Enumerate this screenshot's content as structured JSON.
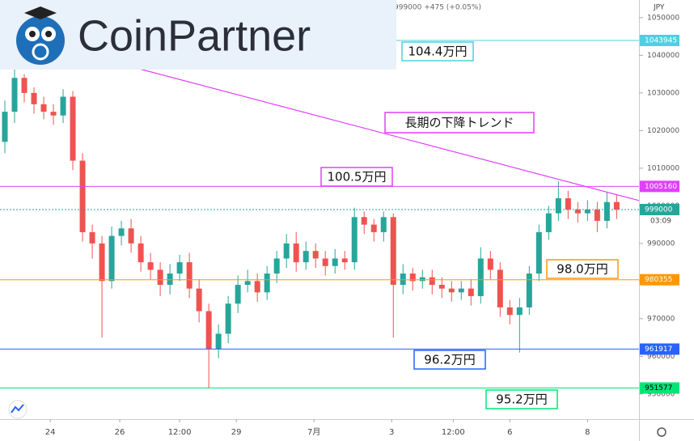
{
  "chart_data": {
    "type": "candlestick",
    "header": "値999000 +475 (+0.05%)",
    "currency": "JPY",
    "countdown": "03:09",
    "logo": "CoinPartner",
    "x": [
      0,
      1,
      2,
      3,
      4,
      5,
      6,
      7,
      8,
      9,
      10,
      11,
      12,
      13,
      14,
      15,
      16,
      17,
      18,
      19,
      20,
      21,
      22,
      23,
      24,
      25,
      26,
      27,
      28,
      29,
      30,
      31,
      32,
      33,
      34,
      35,
      36,
      37,
      38,
      39,
      40,
      41,
      42,
      43,
      44,
      45,
      46,
      47,
      48,
      49,
      50,
      51,
      52,
      53,
      54,
      55,
      56,
      57,
      58,
      59,
      60,
      61,
      62,
      63
    ],
    "open": [
      1017000,
      1025000,
      1034000,
      1030000,
      1027000,
      1025000,
      1024000,
      1029000,
      1012000,
      993000,
      990000,
      980000,
      992000,
      994000,
      990000,
      985000,
      983000,
      979000,
      982000,
      985000,
      978000,
      972000,
      962000,
      966000,
      974000,
      979000,
      980000,
      977000,
      982000,
      986000,
      990000,
      985000,
      988000,
      986000,
      984000,
      986000,
      985000,
      997000,
      995000,
      993000,
      997000,
      979000,
      982000,
      980000,
      981000,
      979000,
      978000,
      977000,
      978000,
      976000,
      986000,
      983000,
      973000,
      971000,
      973000,
      982000,
      993000,
      998000,
      1002000,
      999000,
      998000,
      999000,
      996000,
      1001000
    ],
    "high": [
      1028000,
      1036500,
      1035000,
      1031500,
      1029000,
      1027000,
      1031000,
      1030500,
      1014000,
      995000,
      992000,
      994500,
      996000,
      996500,
      992000,
      987500,
      985000,
      984500,
      987000,
      987500,
      980500,
      974000,
      968500,
      976000,
      981500,
      983000,
      982000,
      984000,
      988000,
      992500,
      993000,
      990500,
      990000,
      988000,
      988500,
      988000,
      999500,
      998500,
      996500,
      998500,
      998000,
      984500,
      983500,
      983000,
      983000,
      981000,
      980000,
      980000,
      980500,
      989000,
      988000,
      985000,
      975000,
      975500,
      984000,
      995000,
      1000000,
      1006500,
      1004000,
      1001000,
      1001500,
      1001000,
      1003500,
      1003000
    ],
    "low": [
      1014000,
      1022000,
      1027500,
      1024500,
      1023000,
      1021500,
      1022000,
      1009500,
      990500,
      986000,
      965000,
      978000,
      989500,
      987500,
      982500,
      980500,
      976000,
      976500,
      980000,
      975500,
      969000,
      951600,
      959500,
      963500,
      971500,
      977000,
      974500,
      975000,
      979500,
      983500,
      982500,
      983000,
      983500,
      981500,
      982000,
      983000,
      983000,
      992500,
      990500,
      990500,
      965000,
      976500,
      977500,
      978000,
      976500,
      975500,
      974500,
      975000,
      973500,
      974000,
      980500,
      970500,
      968500,
      961000,
      971000,
      980000,
      991000,
      996000,
      996500,
      995500,
      996000,
      993000,
      994000,
      996500
    ],
    "close": [
      1025000,
      1034000,
      1030000,
      1027000,
      1025000,
      1024000,
      1029000,
      1012000,
      993000,
      990000,
      980000,
      992000,
      994000,
      990000,
      985000,
      983000,
      979000,
      982000,
      985000,
      978000,
      972000,
      962000,
      966000,
      974000,
      979000,
      980000,
      977000,
      982000,
      986000,
      990000,
      985000,
      988000,
      986000,
      984000,
      986000,
      985000,
      997000,
      995000,
      993000,
      997000,
      979000,
      982000,
      980000,
      981000,
      979000,
      978000,
      977000,
      978000,
      976000,
      986000,
      983000,
      973000,
      971000,
      973000,
      982000,
      993000,
      998000,
      1002000,
      999000,
      998000,
      999000,
      996000,
      1001000,
      999000
    ],
    "up_color": "#26a69a",
    "down_color": "#ef5350",
    "xlim": [
      -0.5,
      65.3
    ],
    "xticks": [
      {
        "value": 4.67,
        "label": "24"
      },
      {
        "value": 11.83,
        "label": "26"
      },
      {
        "value": 18,
        "label": "12:00"
      },
      {
        "value": 23.83,
        "label": "29"
      },
      {
        "value": 31.83,
        "label": "7月"
      },
      {
        "value": 39.83,
        "label": "3"
      },
      {
        "value": 46.17,
        "label": "12:00"
      },
      {
        "value": 52,
        "label": "6"
      },
      {
        "value": 60,
        "label": "8"
      }
    ],
    "ylim": [
      943300,
      1054700
    ],
    "yticks": [
      950000,
      960000,
      970000,
      980000,
      990000,
      1000000,
      1010000,
      1020000,
      1030000,
      1040000,
      1050000
    ],
    "levels": [
      {
        "value": 1043945,
        "color": "#4dd0e1",
        "annotation": "104.4万円"
      },
      {
        "value": 1005160,
        "color": "#e040fb",
        "annotation": "100.5万円"
      },
      {
        "value": 999000,
        "color": "#26a69a",
        "style": "dotted"
      },
      {
        "value": 980355,
        "color": "#ff9800",
        "annotation": "98.0万円"
      },
      {
        "value": 961917,
        "color": "#2962ff",
        "annotation": "96.2万円"
      },
      {
        "value": 951577,
        "color": "#00e676",
        "annotation": "95.2万円"
      }
    ],
    "trend_line": {
      "label": "長期の下降トレンド",
      "color": "#e040fb",
      "x": [
        13.7,
        65.3
      ],
      "y": [
        1036500,
        1001400
      ]
    }
  }
}
